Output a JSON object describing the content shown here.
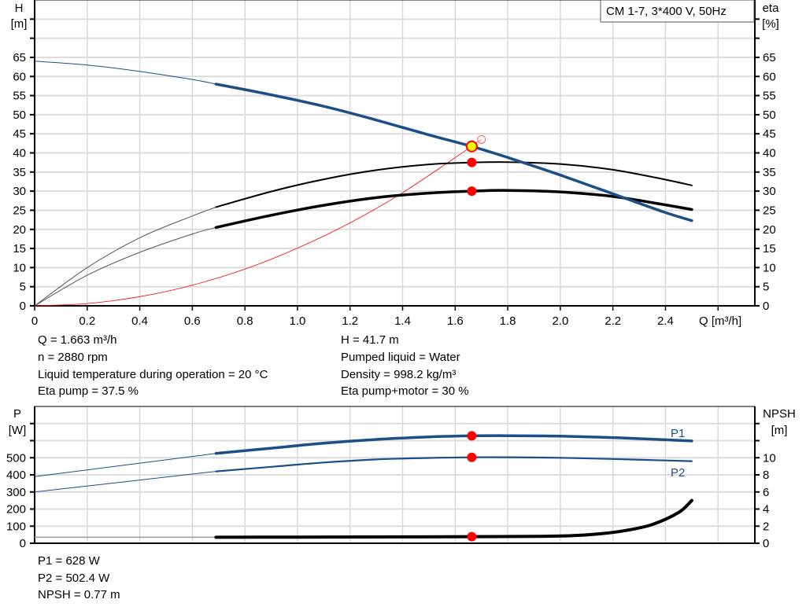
{
  "chart_data": [
    {
      "type": "line",
      "title": "CM 1-7, 3*400 V, 50Hz",
      "xlabel": "Q [m³/h]",
      "ylabel_left": [
        "H",
        "[m]"
      ],
      "ylabel_right": [
        "eta",
        "[%]"
      ],
      "xlim": [
        0,
        2.74
      ],
      "ylim": [
        0,
        80
      ],
      "grid": true,
      "legend": "top-right",
      "x_ticks": [
        "0",
        "0.2",
        "0.4",
        "0.6",
        "0.8",
        "1.0",
        "1.2",
        "1.4",
        "1.6",
        "1.8",
        "2.0",
        "2.2",
        "2.4"
      ],
      "y_ticks_left": [
        "0",
        "5",
        "10",
        "15",
        "20",
        "25",
        "30",
        "35",
        "40",
        "45",
        "50",
        "55",
        "60",
        "65"
      ],
      "y_ticks_right": [
        "0",
        "5",
        "10",
        "15",
        "20",
        "25",
        "30",
        "35",
        "40",
        "45",
        "50",
        "55",
        "60",
        "65"
      ],
      "duty_range_start": 0.69,
      "series": [
        {
          "id": "head",
          "color": "#1c4f86",
          "x": [
            0,
            0.2,
            0.4,
            0.6,
            0.69,
            0.9,
            1.1,
            1.3,
            1.5,
            1.663,
            1.8,
            2.0,
            2.2,
            2.4,
            2.5
          ],
          "y": [
            64,
            63,
            61.3,
            59.2,
            58,
            55.2,
            52.2,
            48.6,
            44.7,
            41.7,
            38.8,
            34.2,
            29.3,
            24.4,
            22.3
          ]
        },
        {
          "id": "eta-pump",
          "color": "#000000",
          "x": [
            0,
            0.2,
            0.4,
            0.6,
            0.69,
            0.9,
            1.1,
            1.3,
            1.5,
            1.663,
            1.8,
            2.0,
            2.2,
            2.4,
            2.5
          ],
          "y": [
            0,
            10,
            17.8,
            23.5,
            25.8,
            29.9,
            33.1,
            35.5,
            37,
            37.5,
            37.6,
            37.1,
            35.6,
            33,
            31.5
          ]
        },
        {
          "id": "eta-pump-motor",
          "color": "#000000",
          "x": [
            0,
            0.2,
            0.4,
            0.6,
            0.69,
            0.9,
            1.1,
            1.3,
            1.5,
            1.663,
            1.8,
            2.0,
            2.2,
            2.4,
            2.5
          ],
          "y": [
            0,
            8,
            14,
            18.8,
            20.5,
            23.7,
            26.3,
            28.3,
            29.5,
            30,
            30.2,
            29.8,
            28.6,
            26.4,
            25.2
          ]
        },
        {
          "id": "system-curve",
          "color": "#ff0000",
          "x": [
            0,
            0.2,
            0.4,
            0.6,
            0.8,
            1.0,
            1.2,
            1.4,
            1.663
          ],
          "y": [
            0,
            0.6,
            2.4,
            5.4,
            9.6,
            15.1,
            21.7,
            29.6,
            41.7
          ]
        }
      ],
      "duty_points": [
        {
          "series": "head",
          "x": 1.663,
          "y": 41.7,
          "style": "yellow"
        },
        {
          "series": "eta-pump",
          "x": 1.663,
          "y": 37.5,
          "style": "red"
        },
        {
          "series": "eta-pump-motor",
          "x": 1.663,
          "y": 30,
          "style": "red"
        }
      ],
      "requested_point": {
        "x": 1.7,
        "y": 43.5
      }
    },
    {
      "type": "line",
      "ylabel_left": [
        "P",
        "[W]"
      ],
      "ylabel_right": [
        "NPSH",
        "[m]"
      ],
      "xlim": [
        0,
        2.74
      ],
      "ylim": [
        0,
        800
      ],
      "ylim_right": [
        0,
        16
      ],
      "grid": true,
      "y_ticks_left": [
        "0",
        "100",
        "200",
        "300",
        "400",
        "500"
      ],
      "y_ticks_right": [
        "0",
        "2",
        "4",
        "6",
        "8",
        "10"
      ],
      "series": [
        {
          "id": "P1",
          "name": "P1",
          "color": "#1c4f86",
          "x": [
            0,
            0.69,
            0.9,
            1.1,
            1.3,
            1.5,
            1.663,
            1.8,
            2.0,
            2.2,
            2.4,
            2.5
          ],
          "y": [
            390,
            525,
            556,
            585,
            607,
            622,
            628,
            629,
            626,
            618,
            605,
            598
          ]
        },
        {
          "id": "P2",
          "name": "P2",
          "color": "#1c4f86",
          "x": [
            0,
            0.69,
            0.9,
            1.1,
            1.3,
            1.5,
            1.663,
            1.8,
            2.0,
            2.2,
            2.4,
            2.5
          ],
          "y": [
            300,
            420,
            447,
            472,
            490,
            499,
            502.4,
            503,
            500,
            493,
            484,
            480
          ]
        },
        {
          "id": "NPSH",
          "color": "#000000",
          "axis": "right",
          "x": [
            0,
            0.69,
            1.0,
            1.3,
            1.663,
            1.9,
            2.05,
            2.15,
            2.25,
            2.35,
            2.45,
            2.5
          ],
          "y": [
            0.7,
            0.7,
            0.72,
            0.74,
            0.77,
            0.8,
            0.9,
            1.1,
            1.5,
            2.2,
            3.6,
            5.0
          ]
        }
      ],
      "duty_points": [
        {
          "series": "P1",
          "x": 1.663,
          "y": 628
        },
        {
          "series": "P2",
          "x": 1.663,
          "y": 502.4
        },
        {
          "series": "NPSH",
          "x": 1.663,
          "y": 0.77
        }
      ]
    }
  ],
  "info_top_left": [
    "Q = 1.663 m³/h",
    "n = 2880 rpm",
    "Liquid temperature during operation = 20 °C",
    "Eta pump = 37.5 %"
  ],
  "info_top_right": [
    "H = 41.7 m",
    "Pumped liquid = Water",
    "Density = 998.2 kg/m³",
    "Eta pump+motor = 30 %"
  ],
  "info_bottom": [
    "P1 = 628 W",
    "P2 = 502.4 W",
    "NPSH = 0.77 m"
  ]
}
